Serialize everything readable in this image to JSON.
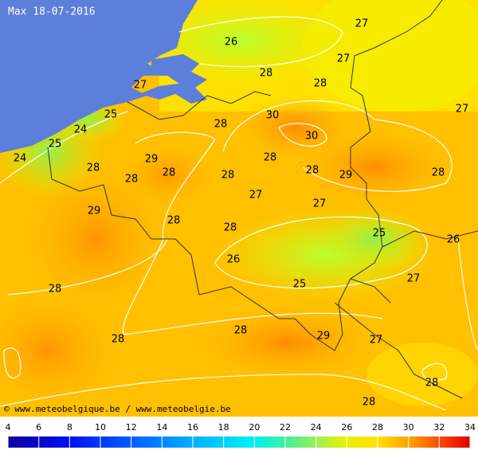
{
  "title": "Max 18-07-2016",
  "credit": "© www.meteobelgique.be / www.meteobelgie.be",
  "station_values": [
    27,
    26,
    27,
    28,
    27,
    28,
    27,
    25,
    30,
    28,
    24,
    30,
    25,
    24,
    29,
    28,
    28,
    28,
    28,
    28,
    29,
    28,
    28,
    27,
    27,
    29,
    28,
    28,
    25,
    26,
    26,
    27,
    25,
    28,
    28,
    29,
    28,
    27,
    28,
    28
  ],
  "scale": {
    "ticks": [
      4,
      6,
      8,
      10,
      12,
      14,
      16,
      18,
      20,
      22,
      24,
      26,
      28,
      30,
      32,
      34
    ]
  }
}
